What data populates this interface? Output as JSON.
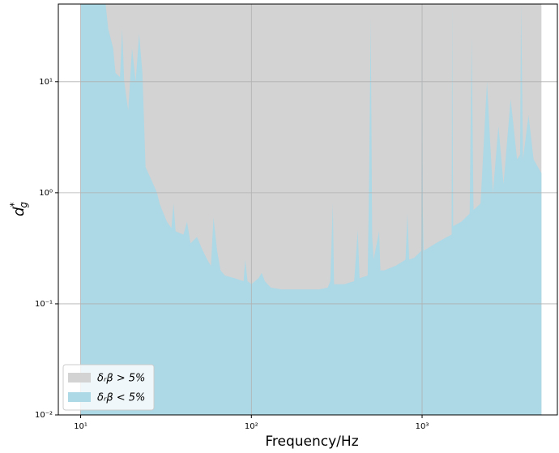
{
  "chart_data": {
    "type": "area",
    "xlabel": "Frequency/Hz",
    "ylabel": {
      "base": "d",
      "sup": "*",
      "sub": "g"
    },
    "xscale": "log",
    "yscale": "log",
    "grid": true,
    "legend": "lower left",
    "xlim": [
      7.4,
      6200
    ],
    "ylim": [
      0.01,
      50
    ],
    "xticks": [
      {
        "value": 10,
        "label": "10¹"
      },
      {
        "value": 100,
        "label": "10²"
      },
      {
        "value": 1000,
        "label": "10³"
      }
    ],
    "yticks": [
      {
        "value": 0.01,
        "label": "10⁻²"
      },
      {
        "value": 0.1,
        "label": "10⁻¹"
      },
      {
        "value": 1,
        "label": "10⁰"
      },
      {
        "value": 10,
        "label": "10¹"
      }
    ],
    "series": [
      {
        "name": "δᵣβ > 5%",
        "color": "#d3d3d3",
        "x": [
          10,
          5000
        ],
        "values": [
          50,
          50
        ]
      },
      {
        "name": "δᵣβ < 5%",
        "color": "#add8e6",
        "x": [
          10,
          14,
          14.5,
          15.5,
          16,
          17,
          17.5,
          18,
          19,
          20,
          21,
          22,
          23,
          24,
          26,
          28,
          29,
          30,
          32,
          34,
          35,
          36,
          40,
          42,
          44,
          48,
          52,
          56,
          58,
          60,
          63,
          66,
          70,
          80,
          90,
          92,
          95,
          100,
          110,
          115,
          120,
          130,
          150,
          200,
          250,
          280,
          290,
          300,
          305,
          350,
          400,
          420,
          430,
          480,
          490,
          500,
          510,
          520,
          560,
          570,
          600,
          700,
          800,
          820,
          840,
          900,
          990,
          1000,
          1010,
          1020,
          1200,
          1400,
          1490,
          1500,
          1520,
          1700,
          1900,
          1950,
          2000,
          2200,
          2400,
          2500,
          2600,
          2800,
          3000,
          3300,
          3600,
          3750,
          3800,
          3900,
          4200,
          4500,
          5000
        ],
        "values": [
          50,
          50,
          30,
          20,
          12,
          11,
          30,
          10,
          5.5,
          20,
          10,
          27,
          12,
          1.7,
          1.3,
          1.0,
          0.8,
          0.7,
          0.55,
          0.48,
          0.8,
          0.45,
          0.42,
          0.55,
          0.35,
          0.4,
          0.3,
          0.24,
          0.22,
          0.6,
          0.3,
          0.2,
          0.18,
          0.17,
          0.16,
          0.25,
          0.16,
          0.15,
          0.17,
          0.19,
          0.16,
          0.14,
          0.135,
          0.135,
          0.135,
          0.14,
          0.16,
          0.8,
          0.15,
          0.15,
          0.16,
          0.46,
          0.17,
          0.18,
          1.5,
          37,
          0.4,
          0.25,
          0.45,
          0.2,
          0.2,
          0.22,
          0.25,
          0.65,
          0.25,
          0.26,
          0.3,
          50,
          0.7,
          0.3,
          0.35,
          0.4,
          0.42,
          50,
          0.5,
          0.55,
          0.65,
          25,
          0.7,
          0.8,
          10,
          3,
          1,
          4,
          1.2,
          7,
          2,
          2.2,
          50,
          2,
          5,
          2,
          1.5
        ]
      }
    ]
  }
}
